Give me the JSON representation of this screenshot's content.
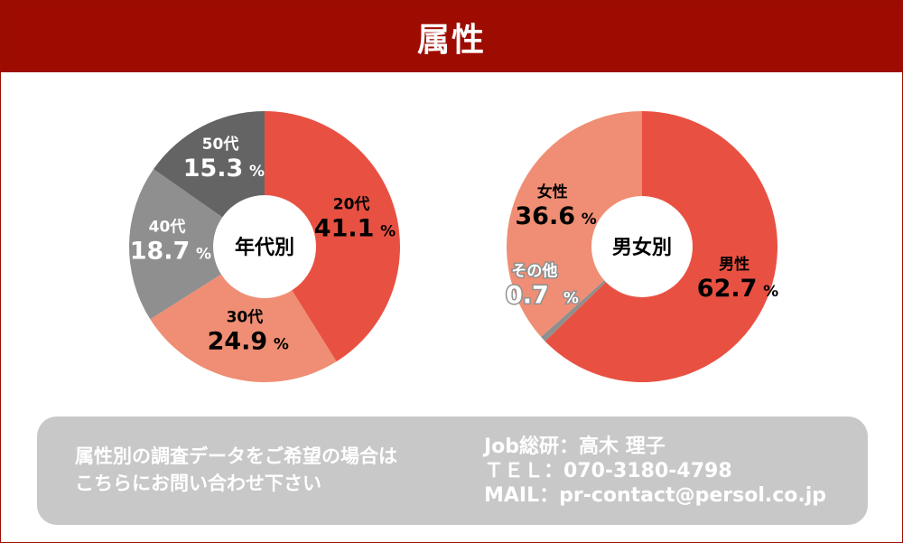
{
  "header": {
    "title": "属性"
  },
  "chart_data": [
    {
      "type": "pie",
      "title": "年代別",
      "categories": [
        "20代",
        "30代",
        "40代",
        "50代"
      ],
      "values": [
        41.1,
        24.9,
        18.7,
        15.3
      ],
      "value_labels": [
        "41.1",
        "24.9",
        "18.7",
        "15.3"
      ],
      "unit": "%",
      "colors": [
        "#e85142",
        "#ef8e74",
        "#8f8f8f",
        "#646464"
      ],
      "label_colors": [
        "#000000",
        "#000000",
        "#ffffff",
        "#ffffff"
      ]
    },
    {
      "type": "pie",
      "title": "男女別",
      "categories": [
        "男性",
        "その他",
        "女性"
      ],
      "values": [
        62.7,
        0.7,
        36.6
      ],
      "value_labels": [
        "62.7",
        "0.7",
        "36.6"
      ],
      "unit": "%",
      "colors": [
        "#e85142",
        "#8f8f8f",
        "#ef8e74"
      ],
      "label_colors": [
        "#000000",
        "#ffffff",
        "#000000"
      ]
    }
  ],
  "contact": {
    "message_line1": "属性別の調査データをご希望の場合は",
    "message_line2": "こちらにお問い合わせ下さい",
    "name_line": "Job総研：高木 理子",
    "tel_line": "ＴＥＬ：070-3180-4798",
    "mail_line": "MAIL：pr-contact@persol.co.jp"
  }
}
